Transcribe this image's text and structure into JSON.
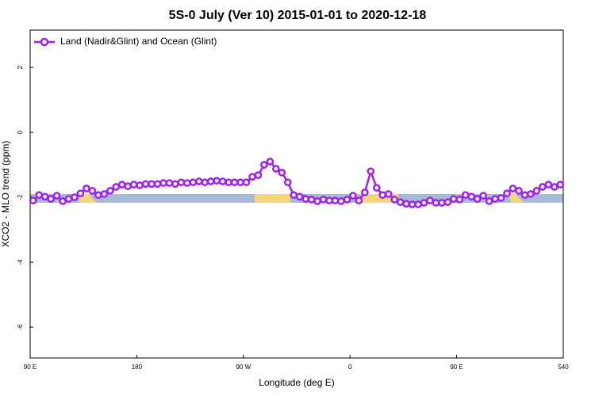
{
  "chart_data": {
    "type": "line",
    "title": "5S-0 July (Ver 10)   2015-01-01 to 2020-12-18",
    "x_label": "Longitude (deg E)",
    "y_label": "XCO2 - MLO trend (ppm)",
    "x": [
      92.5,
      97.5,
      102.5,
      107.5,
      112.5,
      117.5,
      122.5,
      127.5,
      132.5,
      137.5,
      142.5,
      147.5,
      152.5,
      157.5,
      162.5,
      167.5,
      172.5,
      177.5,
      182.5,
      187.5,
      192.5,
      197.5,
      202.5,
      207.5,
      212.5,
      217.5,
      222.5,
      227.5,
      232.5,
      237.5,
      242.5,
      247.5,
      252.5,
      257.5,
      262.5,
      267.5,
      272.5,
      277.5,
      282.5,
      287.5,
      292.5,
      297.5,
      302.5,
      307.5,
      312.5,
      317.5,
      322.5,
      327.5,
      332.5,
      337.5,
      342.5,
      347.5,
      352.5,
      357.5,
      362.5,
      367.5,
      372.5,
      377.5,
      382.5,
      387.5,
      392.5,
      397.5,
      402.5,
      407.5,
      412.5,
      417.5,
      422.5,
      427.5,
      432.5,
      437.5,
      442.5,
      447.5,
      452.5,
      457.5,
      462.5,
      467.5,
      472.5,
      477.5,
      482.5,
      487.5,
      492.5,
      497.5,
      502.5,
      507.5,
      512.5,
      517.5,
      522.5,
      527.5,
      532.5,
      537.5
    ],
    "series": [
      {
        "name": "Land (Nadir&Glint) and Ocean (Glint)",
        "color": "#a020f0",
        "values": [
          -2.1,
          -1.93,
          -1.98,
          -2.05,
          -1.95,
          -2.12,
          -2.05,
          -2.0,
          -1.88,
          -1.73,
          -1.8,
          -1.93,
          -1.9,
          -1.8,
          -1.68,
          -1.61,
          -1.66,
          -1.61,
          -1.63,
          -1.59,
          -1.59,
          -1.59,
          -1.56,
          -1.56,
          -1.59,
          -1.54,
          -1.56,
          -1.54,
          -1.51,
          -1.54,
          -1.51,
          -1.49,
          -1.51,
          -1.54,
          -1.54,
          -1.54,
          -1.54,
          -1.37,
          -1.32,
          -1.0,
          -0.9,
          -1.12,
          -1.24,
          -1.54,
          -1.93,
          -1.98,
          -2.05,
          -2.07,
          -2.12,
          -2.07,
          -2.1,
          -2.1,
          -2.12,
          -2.07,
          -1.95,
          -2.1,
          -1.85,
          -1.2,
          -1.71,
          -1.93,
          -1.9,
          -2.07,
          -2.15,
          -2.2,
          -2.22,
          -2.22,
          -2.17,
          -2.1,
          -2.17,
          -2.17,
          -2.15,
          -2.05,
          -2.07,
          -1.93,
          -1.98,
          -2.05,
          -1.95,
          -2.12,
          -2.05,
          -2.02,
          -1.88,
          -1.73,
          -1.8,
          -1.93,
          -1.9,
          -1.8,
          -1.68,
          -1.61,
          -1.68,
          -1.61
        ]
      }
    ],
    "xlim": [
      90,
      540
    ],
    "xticks": [
      {
        "value": 90,
        "label": "90 E"
      },
      180,
      {
        "value": 270,
        "label": "90 W"
      },
      {
        "value": 360,
        "label": "0"
      },
      {
        "value": 450,
        "label": "90 E"
      },
      540
    ],
    "ylim": [
      -6.95,
      3.15
    ],
    "yticks": [
      -6,
      -4,
      -2,
      0,
      2
    ],
    "legend": "top-left"
  }
}
